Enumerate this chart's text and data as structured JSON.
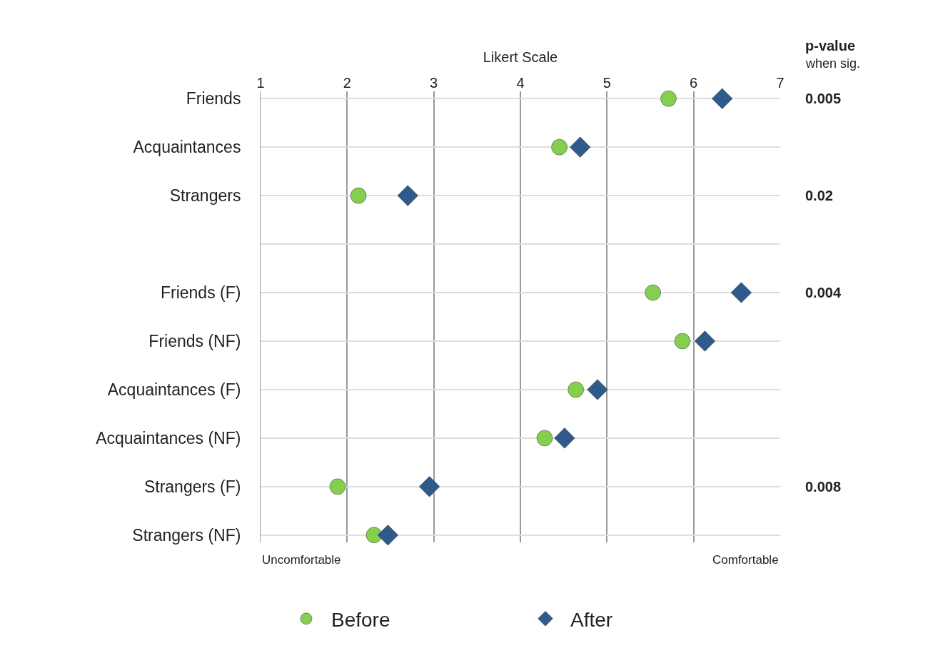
{
  "chart_data": {
    "type": "scatter",
    "xlabel": "Likert Scale",
    "categories": [
      "Friends",
      "Acquaintances",
      "Strangers",
      null,
      "Friends (F)",
      "Friends (NF)",
      "Acquaintances (F)",
      "Acquaintances (NF)",
      "Strangers (F)",
      "Strangers (NF)"
    ],
    "series": [
      {
        "name": "Before",
        "color": "#86cf4e",
        "marker": "circle",
        "values": [
          5.71,
          4.45,
          2.13,
          null,
          5.53,
          5.87,
          4.64,
          4.28,
          1.89,
          2.31
        ]
      },
      {
        "name": "After",
        "color": "#2e5b8c",
        "marker": "diamond",
        "values": [
          6.33,
          4.69,
          2.7,
          null,
          6.55,
          6.13,
          4.89,
          4.51,
          2.95,
          2.47
        ]
      }
    ],
    "orientation": "horizontal",
    "xlim": [
      1,
      7
    ],
    "xticks": [
      1,
      2,
      3,
      4,
      5,
      6,
      7
    ],
    "grid": true,
    "legend": "bottom",
    "annotations": [
      "Uncomfortable",
      "Comfortable",
      "p-value",
      "when sig.",
      "0.005",
      "0.02",
      "0.004",
      "0.008"
    ]
  }
}
